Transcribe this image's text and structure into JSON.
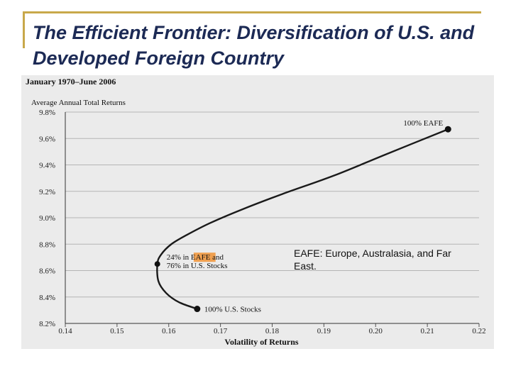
{
  "slide": {
    "title": "The Efficient Frontier: Diversification of U.S. and Developed Foreign Country",
    "note": "EAFE: Europe, Australasia, and Far East.",
    "accent_color": "#c8a84a",
    "title_color": "#1c2a55"
  },
  "chart_data": {
    "type": "line",
    "title": "January 1970–June 2006",
    "ylabel": "Average Annual Total Returns",
    "xlabel": "Volatility of Returns",
    "xlim": [
      0.14,
      0.22
    ],
    "ylim": [
      8.2,
      9.8
    ],
    "xticks": [
      0.14,
      0.15,
      0.16,
      0.17,
      0.18,
      0.19,
      0.2,
      0.21,
      0.22
    ],
    "xtick_labels": [
      "0.14",
      "0.15",
      "0.16",
      "0.17",
      "0.18",
      "0.19",
      "0.20",
      "0.21",
      "0.22"
    ],
    "yticks": [
      9.8,
      9.6,
      9.4,
      9.2,
      9.0,
      8.8,
      8.6,
      8.4,
      8.2
    ],
    "ytick_labels": [
      "9.8%",
      "9.6%",
      "9.4%",
      "9.2%",
      "9.0%",
      "8.8%",
      "8.6%",
      "8.4%",
      "8.2%"
    ],
    "grid": true,
    "series": [
      {
        "x": [
          0.1655,
          0.162,
          0.1595,
          0.158,
          0.1578,
          0.1585,
          0.1605,
          0.1635,
          0.168,
          0.174,
          0.182,
          0.192,
          0.202,
          0.214
        ],
        "y": [
          8.31,
          8.36,
          8.43,
          8.52,
          8.65,
          8.72,
          8.8,
          8.87,
          8.96,
          9.06,
          9.18,
          9.32,
          9.48,
          9.67
        ]
      }
    ],
    "points": [
      {
        "x": 0.214,
        "y": 9.67,
        "label": "100% EAFE"
      },
      {
        "x": 0.1578,
        "y": 8.65,
        "label": "24% in EAFE and\n76% in U.S. Stocks",
        "highlight": "EAFE"
      },
      {
        "x": 0.1655,
        "y": 8.31,
        "label": "100% U.S. Stocks"
      }
    ],
    "highlight_color": "#f0a050",
    "line_color": "#1a1a1a"
  }
}
